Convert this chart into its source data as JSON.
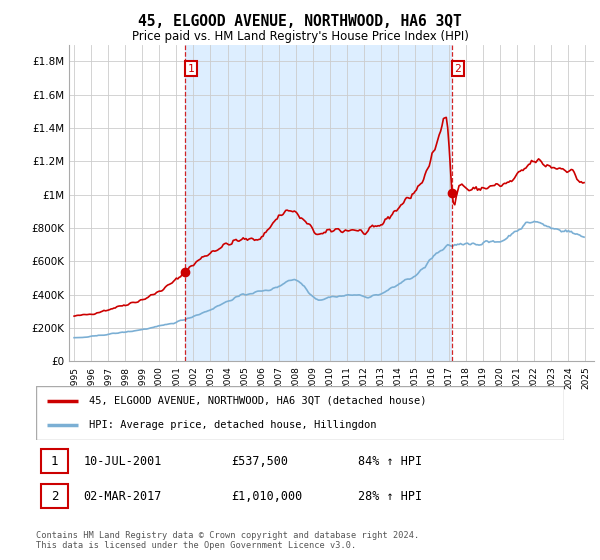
{
  "title": "45, ELGOOD AVENUE, NORTHWOOD, HA6 3QT",
  "subtitle": "Price paid vs. HM Land Registry's House Price Index (HPI)",
  "legend_line1": "45, ELGOOD AVENUE, NORTHWOOD, HA6 3QT (detached house)",
  "legend_line2": "HPI: Average price, detached house, Hillingdon",
  "annotation1_date": "10-JUL-2001",
  "annotation1_price": "£537,500",
  "annotation1_hpi": "84% ↑ HPI",
  "annotation2_date": "02-MAR-2017",
  "annotation2_price": "£1,010,000",
  "annotation2_hpi": "28% ↑ HPI",
  "footer": "Contains HM Land Registry data © Crown copyright and database right 2024.\nThis data is licensed under the Open Government Licence v3.0.",
  "red_color": "#cc0000",
  "blue_color": "#7bafd4",
  "dashed_color": "#cc0000",
  "bg_fill_color": "#ddeeff",
  "ylim_min": 0,
  "ylim_max": 1900000,
  "yticks": [
    0,
    200000,
    400000,
    600000,
    800000,
    1000000,
    1200000,
    1400000,
    1600000,
    1800000
  ],
  "ytick_labels": [
    "£0",
    "£200K",
    "£400K",
    "£600K",
    "£800K",
    "£1M",
    "£1.2M",
    "£1.4M",
    "£1.6M",
    "£1.8M"
  ],
  "sale1_year": 2001.52,
  "sale1_price": 537500,
  "sale2_year": 2017.17,
  "sale2_price": 1010000,
  "xmin": 1995.0,
  "xmax": 2025.5
}
